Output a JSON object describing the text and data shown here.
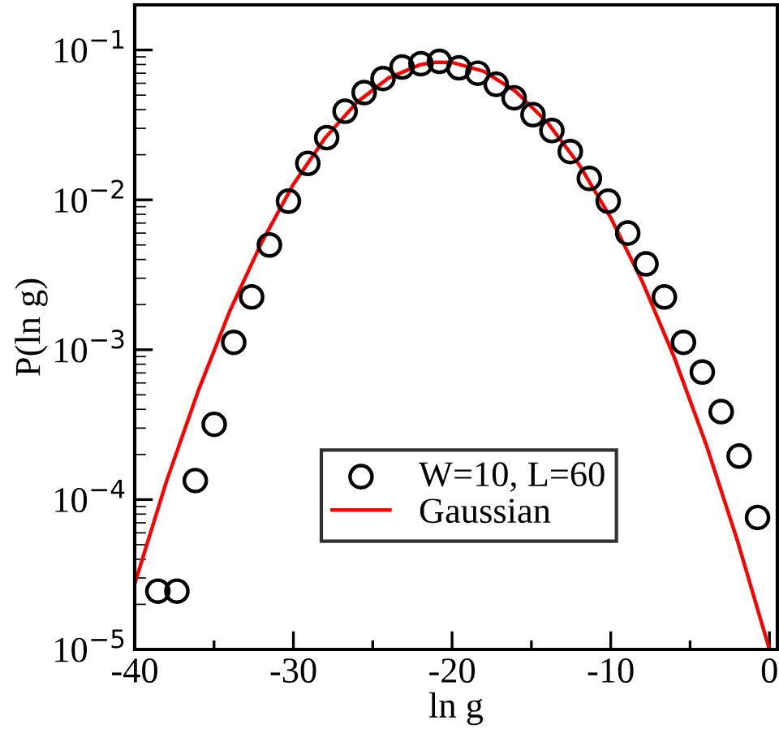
{
  "chart_data": {
    "type": "scatter",
    "xlabel": "ln g",
    "ylabel": "P(ln g)",
    "log": "y",
    "legend": "bottom",
    "grid": false,
    "xlim": [
      -40,
      0.5
    ],
    "xticks": [
      -40,
      {
        "value": -35,
        "label": null
      },
      -30,
      {
        "value": -25,
        "label": null
      },
      -20,
      {
        "value": -15,
        "label": null
      },
      -10,
      {
        "value": -5,
        "label": null
      },
      0
    ],
    "ylim": [
      1e-05,
      0.2
    ],
    "yticks": [
      {
        "value": 1e-05,
        "label": "10$^{−5}$"
      },
      {
        "value": 0.0001,
        "label": "10$^{−4}$"
      },
      {
        "value": 0.001,
        "label": "10$^{−3}$"
      },
      {
        "value": 0.01,
        "label": "10$^{−2}$"
      },
      {
        "value": 0.1,
        "label": "10$^{−1}$"
      }
    ],
    "series": [
      {
        "name": "W=10, L=60",
        "marker": "circle",
        "color": "#000000",
        "x": [
          -38.54,
          -37.34,
          -36.18,
          -34.99,
          -33.76,
          -32.63,
          -31.51,
          -30.31,
          -29.09,
          -27.9,
          -26.74,
          -25.54,
          -24.35,
          -23.15,
          -21.96,
          -20.8,
          -19.57,
          -18.38,
          -17.22,
          -16.09,
          -14.9,
          -13.71,
          -12.55,
          -11.35,
          -10.16,
          -8.93,
          -7.78,
          -6.62,
          -5.42,
          -4.23,
          -3.04,
          -1.91,
          -0.75
        ],
        "values": [
          2.45e-05,
          2.45e-05,
          0.000134,
          0.000318,
          0.00112,
          0.00225,
          0.005,
          0.0098,
          0.0175,
          0.026,
          0.039,
          0.052,
          0.0645,
          0.077,
          0.081,
          0.084,
          0.076,
          0.07,
          0.059,
          0.048,
          0.037,
          0.029,
          0.021,
          0.0139,
          0.0098,
          0.006,
          0.00374,
          0.00225,
          0.00112,
          0.00071,
          0.000386,
          0.000195,
          7.6e-05
        ]
      },
      {
        "name": "Gaussian",
        "type": "line",
        "marker": "none",
        "line_style": "solid",
        "color": "#ff0000",
        "x": [
          -40,
          -38,
          -36,
          -34,
          -32,
          -30,
          -28,
          -26,
          -24,
          -22,
          -21,
          -20,
          -18,
          -16,
          -14,
          -12,
          -10,
          -8,
          -6,
          -4,
          -2,
          0
        ],
        "values": [
          2.74e-05,
          0.000132,
          0.00053,
          0.00182,
          0.0052,
          0.0127,
          0.0259,
          0.0447,
          0.065,
          0.0798,
          0.0829,
          0.0826,
          0.072,
          0.053,
          0.0329,
          0.0172,
          0.0076,
          0.00283,
          0.00089,
          0.000235,
          5.25e-05,
          1e-05
        ]
      }
    ]
  }
}
